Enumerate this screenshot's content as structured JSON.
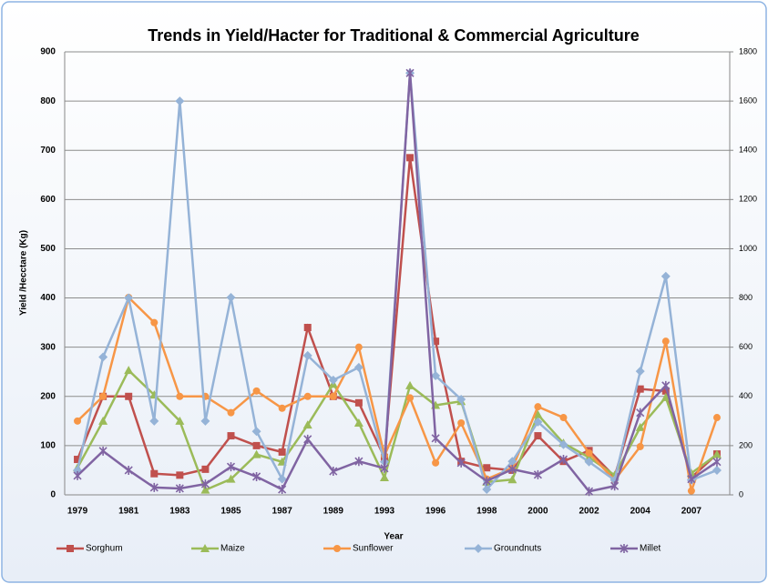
{
  "chart_data": {
    "type": "line",
    "title": "Trends in Yield/Hacter for Traditional & Commercial Agriculture",
    "xlabel": "Year",
    "ylabel": "Yield /Hecctare (Kg)",
    "categories": [
      "1979",
      null,
      "1981",
      null,
      "1983",
      null,
      "1985",
      null,
      "1987",
      null,
      "1989",
      null,
      "1993",
      null,
      "1996",
      null,
      "1998",
      null,
      "2000",
      null,
      "2002",
      null,
      "2004",
      null,
      "2007",
      null
    ],
    "ylim": [
      0,
      900
    ],
    "yticks": [
      0,
      100,
      200,
      300,
      400,
      500,
      600,
      700,
      800,
      900
    ],
    "y2lim": [
      0,
      1800
    ],
    "y2ticks": [
      0,
      200,
      400,
      600,
      800,
      1000,
      1200,
      1400,
      1600,
      1800
    ],
    "grid": true,
    "legend": "bottom",
    "series": [
      {
        "name": "Sorghum",
        "color": "#c0504d",
        "values": [
          72,
          200,
          200,
          43,
          40,
          52,
          120,
          100,
          87,
          340,
          200,
          187,
          76,
          685,
          312,
          68,
          55,
          50,
          120,
          68,
          90,
          37,
          215,
          211,
          35,
          83
        ]
      },
      {
        "name": "Maize",
        "color": "#9bbb59",
        "values": [
          55,
          150,
          253,
          203,
          150,
          10,
          32,
          82,
          67,
          142,
          225,
          146,
          35,
          222,
          182,
          190,
          26,
          31,
          163,
          105,
          76,
          40,
          137,
          198,
          44,
          82
        ]
      },
      {
        "name": "Sunflower",
        "color": "#f79646",
        "values": [
          150,
          200,
          401,
          350,
          200,
          200,
          167,
          211,
          176,
          200,
          200,
          300,
          80,
          197,
          65,
          146,
          32,
          54,
          179,
          157,
          85,
          30,
          98,
          312,
          8,
          157
        ]
      },
      {
        "name": "Groundnuts",
        "color": "#95b3d7",
        "values": [
          50,
          280,
          400,
          150,
          800,
          150,
          401,
          129,
          32,
          283,
          233,
          259,
          67,
          857,
          242,
          194,
          11,
          68,
          148,
          102,
          67,
          30,
          251,
          444,
          30,
          50
        ]
      },
      {
        "name": "Millet",
        "color": "#8064a2",
        "values": [
          39,
          89,
          50,
          15,
          13,
          22,
          57,
          37,
          11,
          113,
          48,
          68,
          54,
          857,
          115,
          65,
          28,
          52,
          41,
          72,
          7,
          18,
          167,
          222,
          32,
          67
        ]
      }
    ]
  }
}
